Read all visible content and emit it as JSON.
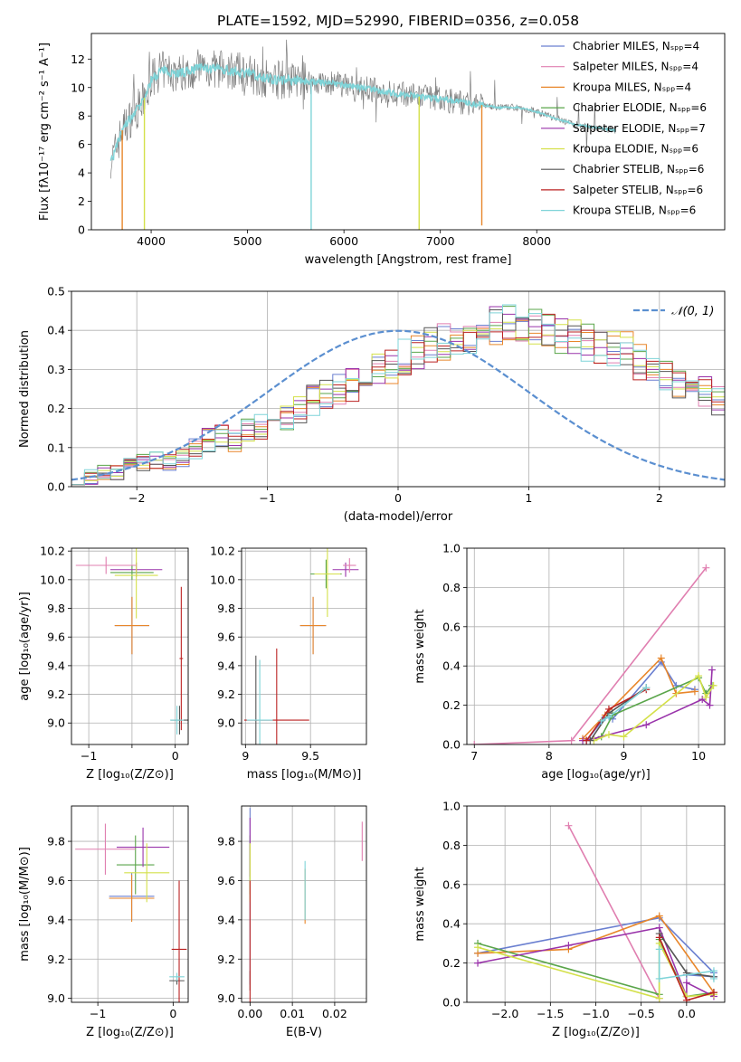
{
  "figure": {
    "title": "PLATE=1592, MJD=52990, FIBERID=0356, z=0.058",
    "model_colors": [
      "#6a7fd0",
      "#e07fb0",
      "#e8862a",
      "#5aa54a",
      "#9933aa",
      "#d4e04a",
      "#555555",
      "#bb2222",
      "#7fd4d8"
    ]
  },
  "chart_data": [
    {
      "id": "spectrum",
      "type": "line",
      "title": "PLATE=1592, MJD=52990, FIBERID=0356, z=0.058",
      "xlabel": "wavelength [Angstrom, rest frame]",
      "ylabel": "Flux [fλ10⁻¹⁷ erg cm⁻² s⁻¹ A⁻¹]",
      "xlim": [
        3380,
        9950
      ],
      "ylim": [
        0,
        13.8
      ],
      "xticks": [
        4000,
        5000,
        6000,
        7000,
        8000
      ],
      "yticks": [
        0,
        2,
        4,
        6,
        8,
        10,
        12
      ],
      "grid": false,
      "legend_position": "top-right",
      "data_color": "#808080",
      "model_color": "#7fd4d8",
      "legend": [
        "Chabrier MILES, Nₛₚₚ=4",
        "Salpeter MILES, Nₛₚₚ=4",
        "Kroupa MILES, Nₛₚₚ=4",
        "Chabrier ELODIE, Nₛₚₚ=6",
        "Salpeter ELODIE, Nₛₚₚ=7",
        "Kroupa ELODIE, Nₛₚₚ=6",
        "Chabrier STELIB, Nₛₚₚ=6",
        "Salpeter STELIB, Nₛₚₚ=6",
        "Kroupa STELIB, Nₛₚₚ=6"
      ],
      "continuum": {
        "x": [
          3600,
          3700,
          3800,
          3900,
          3950,
          4000,
          4100,
          4300,
          4500,
          4800,
          5000,
          5200,
          5500,
          6000,
          6500,
          7000,
          7200,
          7400,
          7600,
          7800,
          8000,
          8200,
          8400,
          8600,
          8800
        ],
        "y": [
          5.0,
          7.0,
          8.0,
          8.8,
          9.6,
          10.5,
          11.2,
          11.0,
          11.4,
          11.2,
          11.0,
          10.6,
          10.5,
          10.2,
          9.6,
          9.2,
          9.0,
          8.8,
          8.6,
          8.6,
          8.3,
          7.8,
          7.4,
          7.2,
          7.0
        ]
      },
      "dips": [
        {
          "x": 3700,
          "y": 0.0
        },
        {
          "x": 3930,
          "y": 0.0
        },
        {
          "x": 5660,
          "y": 0.0
        },
        {
          "x": 6780,
          "y": 0.0
        },
        {
          "x": 7430,
          "y": 0.3
        }
      ]
    },
    {
      "id": "residuals",
      "type": "histogram",
      "xlabel": "(data-model)/error",
      "ylabel": "Normed distribution",
      "xlim": [
        -2.5,
        2.5
      ],
      "ylim": [
        0,
        0.5
      ],
      "xticks": [
        -2,
        -1,
        0,
        1,
        2
      ],
      "yticks": [
        0.0,
        0.1,
        0.2,
        0.3,
        0.4,
        0.5
      ],
      "grid": true,
      "legend_position": "top-right",
      "legend": [
        "𝒩(0, 1)"
      ],
      "gaussian": {
        "mean": 0,
        "sigma": 1,
        "color": "#5b8fd0"
      },
      "bin_width": 0.1,
      "bin_start": -2.5,
      "base": [
        0.025,
        0.025,
        0.035,
        0.04,
        0.05,
        0.06,
        0.07,
        0.065,
        0.075,
        0.095,
        0.12,
        0.13,
        0.12,
        0.15,
        0.155,
        0.175,
        0.18,
        0.2,
        0.22,
        0.24,
        0.25,
        0.26,
        0.28,
        0.3,
        0.31,
        0.33,
        0.34,
        0.36,
        0.37,
        0.38,
        0.39,
        0.4,
        0.41,
        0.42,
        0.39,
        0.41,
        0.4,
        0.39,
        0.38,
        0.37,
        0.36,
        0.35,
        0.35,
        0.32,
        0.3,
        0.28,
        0.27,
        0.25,
        0.24,
        0.22,
        0.21,
        0.18,
        0.17,
        0.14,
        0.13,
        0.12,
        0.1,
        0.09,
        0.08,
        0.07,
        0.06,
        0.055,
        0.05,
        0.045,
        0.04,
        0.035,
        0.03,
        0.03,
        0.03
      ]
    },
    {
      "id": "age-vs-Z",
      "type": "errorbar",
      "xlabel": "Z [log₁₀(Z/Z⊙)]",
      "ylabel": "age  [log₁₀(age/yr)]",
      "xlim": [
        -1.2,
        0.15
      ],
      "ylim": [
        8.85,
        10.22
      ],
      "xticks": [
        -1,
        -0.5,
        0
      ],
      "xticklabels": [
        "−1",
        "",
        "0"
      ],
      "yticks": [
        9.0,
        9.2,
        9.4,
        9.6,
        9.8,
        10.0,
        10.2
      ],
      "grid": true,
      "points": [
        {
          "x": -0.5,
          "y": 9.68,
          "xerr": 0.2,
          "yerr": 0.2,
          "model": 0
        },
        {
          "x": -0.5,
          "y": 9.68,
          "xerr": 0.2,
          "yerr": 0.2,
          "model": 2
        },
        {
          "x": -0.5,
          "y": 10.05,
          "xerr": 0.25,
          "yerr": 0.05,
          "model": 3
        },
        {
          "x": -0.45,
          "y": 10.07,
          "xerr": 0.3,
          "yerr": 0.05,
          "model": 4
        },
        {
          "x": -0.45,
          "y": 10.03,
          "xerr": 0.25,
          "yerr": 0.3,
          "model": 5
        },
        {
          "x": -0.8,
          "y": 10.1,
          "xerr": 0.35,
          "yerr": 0.06,
          "model": 1
        },
        {
          "x": 0.05,
          "y": 9.02,
          "xerr": 0.1,
          "yerr": 0.1,
          "model": 6
        },
        {
          "x": 0.07,
          "y": 9.45,
          "xerr": 0.02,
          "yerr": 0.5,
          "model": 7
        },
        {
          "x": 0.02,
          "y": 9.02,
          "xerr": 0.08,
          "yerr": 0.1,
          "model": 8
        }
      ]
    },
    {
      "id": "age-vs-mass",
      "type": "errorbar",
      "xlabel": "mass [log₁₀(M/M⊙)]",
      "ylabel": "",
      "xlim": [
        8.97,
        9.93
      ],
      "ylim": [
        8.85,
        10.22
      ],
      "xticks": [
        9.0,
        9.5
      ],
      "yticks": [
        9.0,
        9.2,
        9.4,
        9.6,
        9.8,
        10.0,
        10.2
      ],
      "grid": true,
      "points": [
        {
          "x": 9.52,
          "y": 9.68,
          "xerr": 0.1,
          "yerr": 0.2,
          "model": 0
        },
        {
          "x": 9.52,
          "y": 9.68,
          "xerr": 0.1,
          "yerr": 0.2,
          "model": 2
        },
        {
          "x": 9.62,
          "y": 10.04,
          "xerr": 0.12,
          "yerr": 0.1,
          "model": 3
        },
        {
          "x": 9.77,
          "y": 10.07,
          "xerr": 0.1,
          "yerr": 0.05,
          "model": 4
        },
        {
          "x": 9.63,
          "y": 10.04,
          "xerr": 0.1,
          "yerr": 0.3,
          "model": 5
        },
        {
          "x": 9.8,
          "y": 10.1,
          "xerr": 0.05,
          "yerr": 0.05,
          "model": 1
        },
        {
          "x": 9.08,
          "y": 9.02,
          "xerr": 0.01,
          "yerr": 0.45,
          "model": 6
        },
        {
          "x": 9.24,
          "y": 9.02,
          "xerr": 0.25,
          "yerr": 0.5,
          "model": 7
        },
        {
          "x": 9.11,
          "y": 9.02,
          "xerr": 0.1,
          "yerr": 0.42,
          "model": 8
        }
      ]
    },
    {
      "id": "massweight-vs-age",
      "type": "line",
      "xlabel": "age  [log₁₀(age/yr)]",
      "ylabel": "mass weight",
      "xlim": [
        6.9,
        10.35
      ],
      "ylim": [
        0,
        1.0
      ],
      "xticks": [
        7,
        8,
        9,
        10
      ],
      "yticks": [
        0.0,
        0.2,
        0.4,
        0.6,
        0.8,
        1.0
      ],
      "grid": true,
      "series": [
        {
          "model": 0,
          "x": [
            8.5,
            8.75,
            8.85,
            9.5,
            9.7,
            9.95
          ],
          "y": [
            0.02,
            0.14,
            0.13,
            0.42,
            0.3,
            0.28
          ]
        },
        {
          "model": 1,
          "x": [
            7.0,
            8.3,
            10.1
          ],
          "y": [
            0.0,
            0.02,
            0.9
          ]
        },
        {
          "model": 2,
          "x": [
            8.45,
            8.75,
            9.5,
            9.7,
            9.95
          ],
          "y": [
            0.03,
            0.15,
            0.44,
            0.26,
            0.27
          ]
        },
        {
          "model": 3,
          "x": [
            8.7,
            8.85,
            10.0,
            10.1,
            10.18
          ],
          "y": [
            0.04,
            0.15,
            0.34,
            0.26,
            0.3
          ]
        },
        {
          "model": 4,
          "x": [
            8.45,
            8.6,
            9.3,
            10.05,
            10.15,
            10.18
          ],
          "y": [
            0.02,
            0.03,
            0.1,
            0.23,
            0.2,
            0.38
          ]
        },
        {
          "model": 5,
          "x": [
            8.6,
            8.8,
            9.0,
            10.0,
            10.1,
            10.2
          ],
          "y": [
            0.02,
            0.05,
            0.04,
            0.35,
            0.24,
            0.3
          ]
        },
        {
          "model": 6,
          "x": [
            8.55,
            8.8,
            9.3
          ],
          "y": [
            0.02,
            0.16,
            0.29
          ]
        },
        {
          "model": 7,
          "x": [
            8.5,
            8.8,
            9.3
          ],
          "y": [
            0.02,
            0.18,
            0.28
          ]
        },
        {
          "model": 8,
          "x": [
            8.7,
            8.8,
            9.3
          ],
          "y": [
            0.12,
            0.14,
            0.29
          ]
        }
      ]
    },
    {
      "id": "mass-vs-Z",
      "type": "errorbar",
      "xlabel": "Z [log₁₀(Z/Z⊙)]",
      "ylabel": "mass [log₁₀(M/M⊙)]",
      "xlim": [
        -1.35,
        0.2
      ],
      "ylim": [
        8.98,
        9.98
      ],
      "xticks": [
        -1,
        0
      ],
      "xticklabels": [
        "−1",
        "0"
      ],
      "yticks": [
        9.0,
        9.2,
        9.4,
        9.6,
        9.8
      ],
      "grid": true,
      "points": [
        {
          "x": -0.55,
          "y": 9.52,
          "xerr": 0.3,
          "yerr": 0.12,
          "model": 0
        },
        {
          "x": -0.55,
          "y": 9.51,
          "xerr": 0.3,
          "yerr": 0.12,
          "model": 2
        },
        {
          "x": -0.5,
          "y": 9.68,
          "xerr": 0.25,
          "yerr": 0.15,
          "model": 3
        },
        {
          "x": -0.4,
          "y": 9.77,
          "xerr": 0.35,
          "yerr": 0.1,
          "model": 4
        },
        {
          "x": -0.35,
          "y": 9.64,
          "xerr": 0.3,
          "yerr": 0.15,
          "model": 5
        },
        {
          "x": -0.9,
          "y": 9.76,
          "xerr": 0.4,
          "yerr": 0.13,
          "model": 1
        },
        {
          "x": 0.05,
          "y": 9.09,
          "xerr": 0.1,
          "yerr": 0.02,
          "model": 6
        },
        {
          "x": 0.08,
          "y": 9.25,
          "xerr": 0.1,
          "yerr": 0.35,
          "model": 7
        },
        {
          "x": 0.05,
          "y": 9.11,
          "xerr": 0.1,
          "yerr": 0.02,
          "model": 8
        }
      ]
    },
    {
      "id": "mass-vs-EBV",
      "type": "errorbar",
      "xlabel": "E(B-V)",
      "ylabel": "",
      "xlim": [
        -0.002,
        0.0275
      ],
      "ylim": [
        8.98,
        9.98
      ],
      "xticks": [
        0.0,
        0.01,
        0.02
      ],
      "xticklabels": [
        "0.00",
        "0.01",
        "0.02"
      ],
      "yticks": [
        9.0,
        9.2,
        9.4,
        9.6,
        9.8
      ],
      "grid": true,
      "points": [
        {
          "x": 0.0,
          "y": 9.52,
          "xerr": 0,
          "yerr": 0.45,
          "model": 0
        },
        {
          "x": 0.013,
          "y": 9.52,
          "xerr": 0,
          "yerr": 0.14,
          "model": 2
        },
        {
          "x": 0.0,
          "y": 9.68,
          "xerr": 0,
          "yerr": 0.15,
          "model": 3
        },
        {
          "x": 0.0,
          "y": 9.77,
          "xerr": 0,
          "yerr": 0.15,
          "model": 4
        },
        {
          "x": 0.0,
          "y": 9.64,
          "xerr": 0,
          "yerr": 0.15,
          "model": 5
        },
        {
          "x": 0.0265,
          "y": 9.8,
          "xerr": 0,
          "yerr": 0.1,
          "model": 1
        },
        {
          "x": 0.0,
          "y": 9.09,
          "xerr": 0,
          "yerr": 0.05,
          "model": 6
        },
        {
          "x": 0.0,
          "y": 9.25,
          "xerr": 0,
          "yerr": 0.35,
          "model": 7
        },
        {
          "x": 0.013,
          "y": 9.55,
          "xerr": 0,
          "yerr": 0.15,
          "model": 8
        }
      ]
    },
    {
      "id": "massweight-vs-Z",
      "type": "line",
      "xlabel": "Z [log₁₀(Z/Z⊙)]",
      "ylabel": "mass weight",
      "xlim": [
        -2.42,
        0.42
      ],
      "ylim": [
        0,
        1.0
      ],
      "xticks": [
        -2.0,
        -1.5,
        -1.0,
        -0.5,
        0.0
      ],
      "xticklabels": [
        "−2.0",
        "−1.5",
        "−1.0",
        "−0.5",
        "0.0"
      ],
      "yticks": [
        0.0,
        0.2,
        0.4,
        0.6,
        0.8,
        1.0
      ],
      "grid": true,
      "series": [
        {
          "model": 0,
          "x": [
            -2.3,
            -0.3,
            0.3,
            0.3,
            0.0
          ],
          "y": [
            0.25,
            0.43,
            0.15,
            0.13,
            0.14
          ]
        },
        {
          "model": 1,
          "x": [
            -1.3,
            -0.3
          ],
          "y": [
            0.9,
            0.02
          ]
        },
        {
          "model": 2,
          "x": [
            -2.3,
            -1.3,
            -0.3,
            0.3
          ],
          "y": [
            0.25,
            0.27,
            0.44,
            0.05
          ]
        },
        {
          "model": 3,
          "x": [
            -2.3,
            -0.3,
            -0.3,
            0.0,
            0.3
          ],
          "y": [
            0.3,
            0.04,
            0.32,
            0.03,
            0.05
          ]
        },
        {
          "model": 4,
          "x": [
            -2.3,
            -1.3,
            -0.3,
            0.0,
            0.0,
            0.3
          ],
          "y": [
            0.2,
            0.29,
            0.38,
            0.03,
            0.1,
            0.03
          ]
        },
        {
          "model": 5,
          "x": [
            -2.3,
            -0.3,
            -0.3,
            0.0,
            0.3
          ],
          "y": [
            0.28,
            0.02,
            0.3,
            0.03,
            0.04
          ]
        },
        {
          "model": 6,
          "x": [
            -0.3,
            0.0,
            0.3
          ],
          "y": [
            0.35,
            0.15,
            0.13
          ]
        },
        {
          "model": 7,
          "x": [
            -0.3,
            0.0,
            0.3
          ],
          "y": [
            0.33,
            0.01,
            0.05
          ]
        },
        {
          "model": 8,
          "x": [
            -0.3,
            -0.3,
            0.3,
            0.3
          ],
          "y": [
            0.27,
            0.12,
            0.16,
            0.12
          ]
        }
      ]
    }
  ]
}
